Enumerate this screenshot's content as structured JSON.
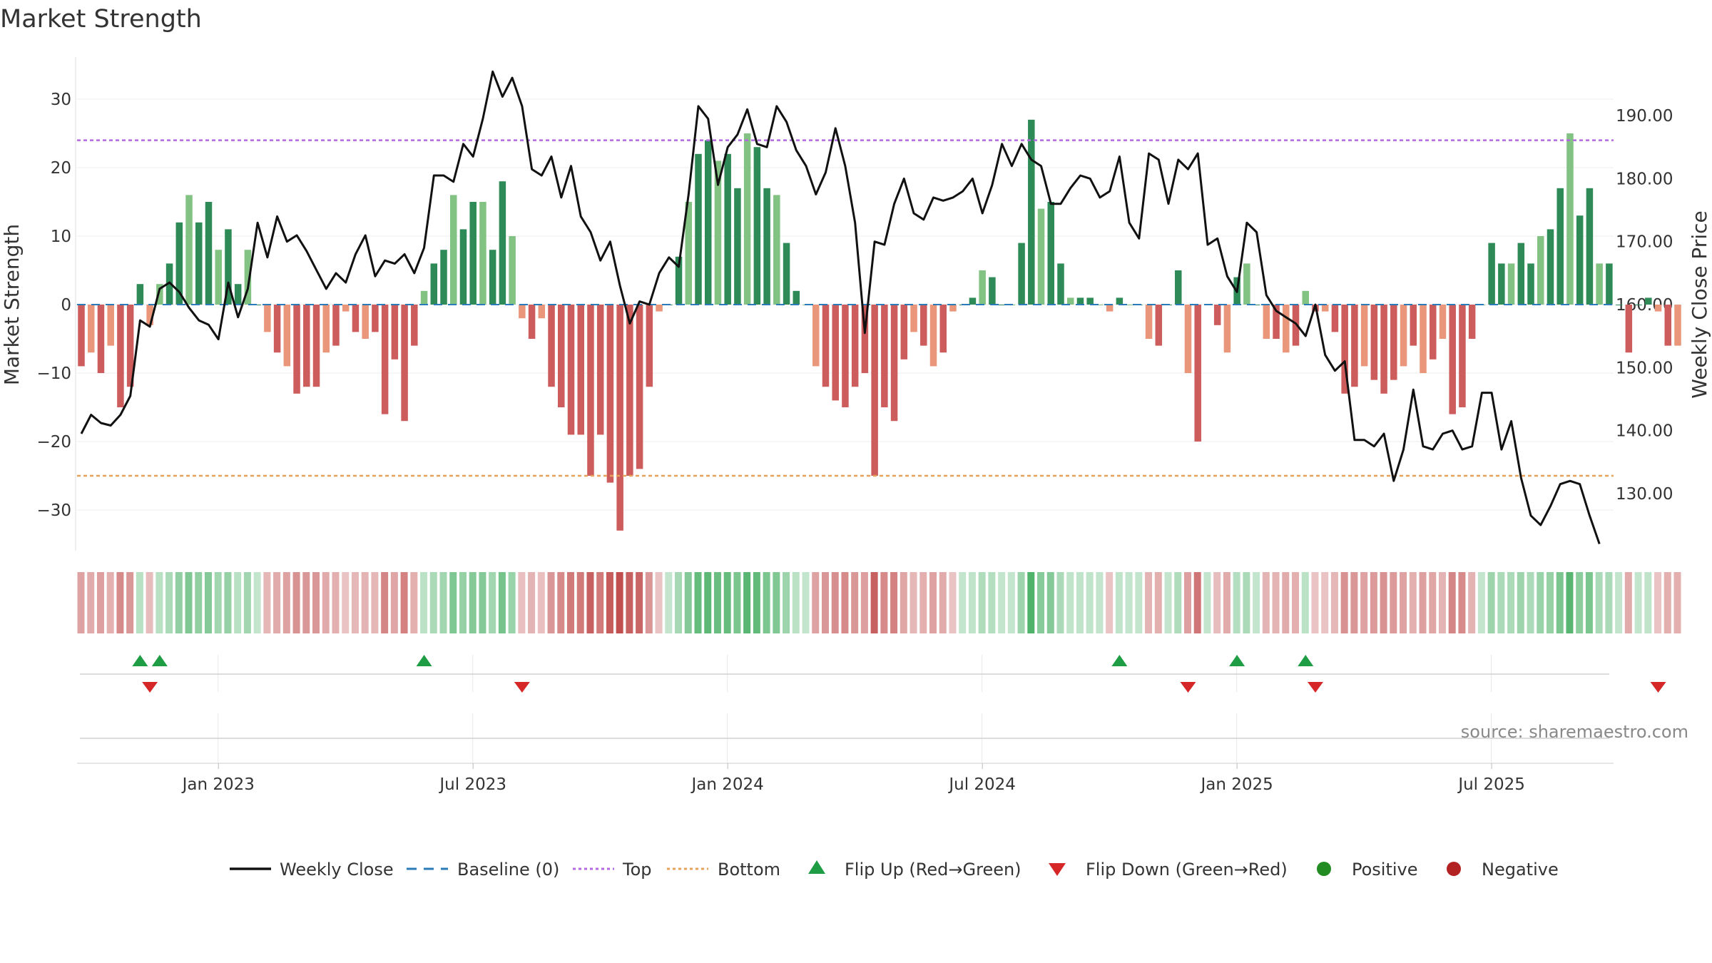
{
  "chart_data": {
    "type": "bar+line",
    "title": "Market Strength",
    "source": "source: sharemaestro.com",
    "left_axis": {
      "label": "Market Strength",
      "ylim": [
        -36,
        36
      ],
      "ticks": [
        30,
        20,
        10,
        0,
        -10,
        -20,
        -30
      ],
      "tick_labels": [
        "30",
        "20",
        "10",
        "0",
        "−10",
        "−20",
        "−30"
      ]
    },
    "right_axis": {
      "label": "Weekly Close Price",
      "ylim": [
        120,
        200
      ],
      "ticks": [
        190,
        180,
        170,
        160,
        150,
        140,
        130
      ],
      "tick_labels": [
        "190.00",
        "180.00",
        "170.00",
        "160.00",
        "150.00",
        "140.00",
        "130.00"
      ]
    },
    "x_ticks": [
      14,
      40,
      66,
      92,
      118,
      144
    ],
    "x_tick_labels": [
      "Jan 2023",
      "Jul 2023",
      "Jan 2024",
      "Jul 2024",
      "Jan 2025",
      "Jul 2025"
    ],
    "top_level": 24,
    "bottom_level": -25,
    "strength": [
      -9,
      -7,
      -10,
      -6,
      -15,
      -12,
      3,
      -3,
      3,
      6,
      12,
      16,
      12,
      15,
      8,
      11,
      3,
      8,
      0,
      -4,
      -7,
      -9,
      -13,
      -12,
      -12,
      -7,
      -6,
      -1,
      -4,
      -5,
      -4,
      -16,
      -8,
      -17,
      -6,
      2,
      6,
      8,
      16,
      11,
      15,
      15,
      8,
      18,
      10,
      -2,
      -5,
      -2,
      -12,
      -15,
      -19,
      -19,
      -25,
      -19,
      -26,
      -33,
      -25,
      -24,
      -12,
      -1,
      0,
      7,
      15,
      22,
      24,
      21,
      22,
      17,
      25,
      23,
      17,
      16,
      9,
      2,
      0,
      -9,
      -12,
      -14,
      -15,
      -12,
      -10,
      -25,
      -15,
      -17,
      -8,
      -4,
      -6,
      -9,
      -7,
      -1,
      0,
      1,
      5,
      4,
      0,
      0,
      9,
      27,
      14,
      15,
      6,
      1,
      1,
      1,
      0,
      -1,
      1,
      0,
      0,
      -5,
      -6,
      0,
      5,
      -10,
      -20,
      0,
      -3,
      -7,
      4,
      6,
      0,
      -5,
      -5,
      -7,
      -6,
      2,
      -1,
      -1,
      -4,
      -13,
      -12,
      -9,
      -11,
      -13,
      -11,
      -9,
      -6,
      -10,
      -8,
      -5,
      -16,
      -15,
      -5,
      0,
      9,
      6,
      6,
      9,
      6,
      10,
      11,
      17,
      25,
      13,
      17,
      6,
      6,
      0,
      -7,
      0,
      1,
      -1,
      -6,
      -6
    ],
    "weekly_close": [
      139.5,
      142.5,
      141.2,
      140.8,
      142.5,
      145.5,
      157.5,
      156.5,
      162.5,
      163.5,
      162,
      159.5,
      157.5,
      156.8,
      154.5,
      163.5,
      158,
      162.5,
      173,
      167.5,
      174,
      170,
      171,
      168.5,
      165.5,
      162.5,
      165,
      163.5,
      168,
      171,
      164.5,
      167,
      166.5,
      168,
      165,
      169,
      180.5,
      180.5,
      179.5,
      185.5,
      183.5,
      189.5,
      197,
      193,
      196,
      191.5,
      181.5,
      180.5,
      183.5,
      177,
      182,
      174,
      171.5,
      167,
      170,
      163,
      157,
      160.5,
      160,
      165,
      167.5,
      166,
      177.5,
      191.5,
      189.5,
      179,
      185,
      187,
      191,
      185.5,
      185,
      191.5,
      189,
      184.5,
      182,
      177.5,
      181,
      188,
      182,
      173,
      155.5,
      170,
      169.5,
      176,
      180,
      174.5,
      173.5,
      177,
      176.5,
      177,
      178,
      180,
      174.5,
      179,
      185.5,
      182,
      185.5,
      183,
      182,
      176,
      176,
      178.5,
      180.5,
      180,
      177,
      178,
      183.5,
      173,
      170.5,
      184,
      183,
      176,
      183,
      181.5,
      184,
      169.5,
      170.5,
      164.5,
      162,
      173,
      171.5,
      161.5,
      159,
      158,
      157,
      155,
      160,
      152,
      149.5,
      151,
      138.5,
      138.5,
      137.5,
      139.5,
      132,
      137,
      146.5,
      137.5,
      137,
      139.5,
      140,
      137,
      137.5,
      146,
      146,
      137,
      141.5,
      132.5,
      126.5,
      125,
      128,
      131.5,
      132,
      131.5,
      126.5,
      122
    ]
  },
  "legend": [
    {
      "label": "Weekly Close",
      "icon": "solid-line",
      "color": "#111111"
    },
    {
      "label": "Baseline (0)",
      "icon": "dashed-line",
      "color": "#2b7bb9"
    },
    {
      "label": "Top",
      "icon": "dotted-line",
      "color": "#b36ae2"
    },
    {
      "label": "Bottom",
      "icon": "dotted-line",
      "color": "#e8a15b"
    },
    {
      "label": "Flip Up (Red→Green)",
      "icon": "triangle-up",
      "color": "#1f9d45"
    },
    {
      "label": "Flip Down (Green→Red)",
      "icon": "triangle-down",
      "color": "#d62728"
    },
    {
      "label": "Positive",
      "icon": "dot",
      "color": "#228b22"
    },
    {
      "label": "Negative",
      "icon": "dot",
      "color": "#b22222"
    }
  ],
  "colors": {
    "pos_strong": "#2e8b57",
    "pos_light": "#82c282",
    "neg_strong": "#cd5c5c",
    "neg_light": "#e9967a",
    "flip_up": "#1f9d45",
    "flip_down": "#d62728",
    "top_line": "#b36ae2",
    "bottom_line": "#e8a15b",
    "baseline": "#2b7bb9"
  }
}
